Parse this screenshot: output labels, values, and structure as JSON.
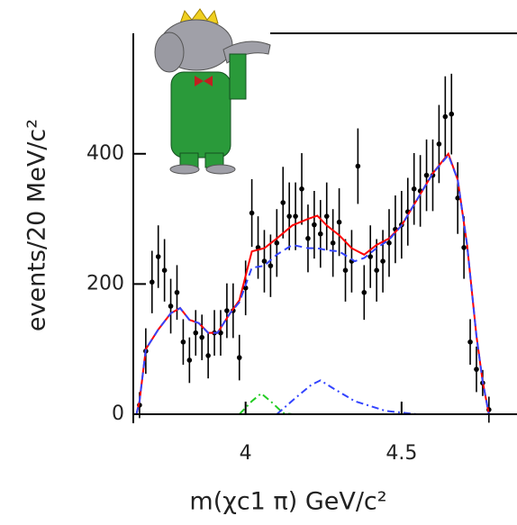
{
  "chart_data": {
    "type": "errorbar",
    "xlabel": "m(χc1 π) GeV/c²",
    "ylabel": "events/20 MeV/c²",
    "xlim": [
      3.64,
      4.87
    ],
    "ylim": [
      0,
      585
    ],
    "xticks": [
      4,
      4.5
    ],
    "yticks": [
      0,
      200,
      400
    ],
    "series": [
      {
        "color": "#000000",
        "style": "points",
        "x": [
          3.66,
          3.68,
          3.7,
          3.72,
          3.74,
          3.76,
          3.78,
          3.8,
          3.82,
          3.84,
          3.86,
          3.88,
          3.9,
          3.92,
          3.94,
          3.96,
          3.98,
          4.0,
          4.02,
          4.04,
          4.06,
          4.08,
          4.1,
          4.12,
          4.14,
          4.16,
          4.18,
          4.2,
          4.22,
          4.24,
          4.26,
          4.28,
          4.3,
          4.32,
          4.34,
          4.36,
          4.38,
          4.4,
          4.42,
          4.44,
          4.46,
          4.48,
          4.5,
          4.52,
          4.54,
          4.56,
          4.58,
          4.6,
          4.62,
          4.64,
          4.66,
          4.68,
          4.7,
          4.72,
          4.74,
          4.76,
          4.78
        ],
        "values": [
          14,
          97,
          203,
          242,
          221,
          166,
          187,
          111,
          83,
          125,
          118,
          90,
          125,
          125,
          159,
          159,
          87,
          194,
          309,
          256,
          235,
          228,
          263,
          325,
          304,
          304,
          346,
          270,
          291,
          277,
          304,
          263,
          295,
          221,
          235,
          381,
          187,
          242,
          221,
          235,
          263,
          284,
          291,
          311,
          346,
          343,
          367,
          367,
          415,
          457,
          461,
          332,
          256,
          111,
          69,
          48,
          7
        ],
        "errors": [
          20,
          35,
          48,
          48,
          48,
          42,
          42,
          35,
          35,
          35,
          35,
          35,
          35,
          35,
          42,
          42,
          35,
          42,
          52,
          48,
          48,
          48,
          52,
          55,
          52,
          52,
          55,
          52,
          52,
          52,
          52,
          52,
          52,
          48,
          48,
          58,
          42,
          48,
          48,
          48,
          52,
          52,
          52,
          52,
          55,
          55,
          55,
          55,
          60,
          62,
          62,
          55,
          48,
          35,
          35,
          20,
          20
        ]
      },
      {
        "color": "#ff0000",
        "style": "solid",
        "x": [
          3.65,
          3.66,
          3.68,
          3.72,
          3.76,
          3.79,
          3.82,
          3.85,
          3.88,
          3.91,
          3.95,
          3.98,
          4.02,
          4.06,
          4.1,
          4.15,
          4.2,
          4.23,
          4.26,
          4.3,
          4.34,
          4.38,
          4.42,
          4.46,
          4.5,
          4.55,
          4.6,
          4.65,
          4.68,
          4.71,
          4.74,
          4.76,
          4.78
        ],
        "values": [
          0,
          20,
          100,
          130,
          155,
          163,
          145,
          140,
          125,
          125,
          155,
          175,
          250,
          255,
          270,
          290,
          300,
          305,
          290,
          275,
          255,
          245,
          260,
          270,
          290,
          330,
          370,
          400,
          360,
          260,
          120,
          50,
          0
        ]
      },
      {
        "color": "#3344ff",
        "style": "dashed",
        "x": [
          3.65,
          3.66,
          3.68,
          3.72,
          3.76,
          3.79,
          3.82,
          3.85,
          3.88,
          3.91,
          3.95,
          3.98,
          4.02,
          4.06,
          4.1,
          4.15,
          4.2,
          4.23,
          4.26,
          4.3,
          4.35,
          4.38,
          4.42,
          4.46,
          4.5,
          4.55,
          4.6,
          4.65,
          4.68,
          4.71,
          4.74,
          4.76,
          4.78
        ],
        "values": [
          0,
          20,
          100,
          130,
          155,
          163,
          145,
          140,
          125,
          125,
          155,
          172,
          225,
          228,
          245,
          260,
          255,
          255,
          252,
          250,
          235,
          240,
          255,
          268,
          290,
          330,
          370,
          398,
          360,
          260,
          120,
          50,
          0
        ]
      },
      {
        "color": "#22cc22",
        "style": "dashdot",
        "x": [
          3.98,
          4.02,
          4.05,
          4.08,
          4.12,
          4.15
        ],
        "values": [
          0,
          20,
          32,
          20,
          2,
          0
        ]
      },
      {
        "color": "#3344ff",
        "style": "dashdot",
        "x": [
          4.1,
          4.16,
          4.21,
          4.24,
          4.28,
          4.35,
          4.45,
          4.55
        ],
        "values": [
          0,
          25,
          45,
          52,
          40,
          20,
          5,
          0
        ]
      }
    ]
  }
}
